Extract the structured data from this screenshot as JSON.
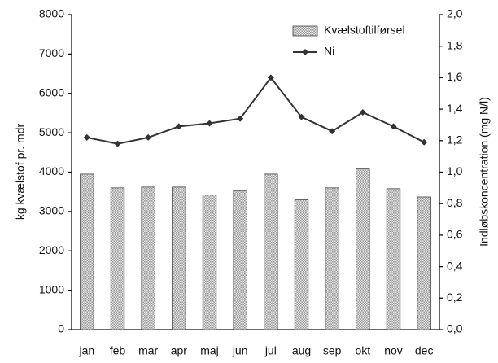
{
  "chart_data": {
    "type": "bar",
    "categories": [
      "jan",
      "feb",
      "mar",
      "apr",
      "maj",
      "jun",
      "jul",
      "aug",
      "sep",
      "okt",
      "nov",
      "dec"
    ],
    "y_label": "kg kvælstof pr. mdr",
    "y2_label": "Indløbskoncentration (mg N/l)",
    "series": [
      {
        "name": "Kvælstoftilførsel",
        "type": "bar",
        "color": "#9a9a9a",
        "values": [
          3950,
          3600,
          3620,
          3620,
          3420,
          3530,
          3950,
          3300,
          3600,
          4080,
          3580,
          3370
        ]
      },
      {
        "name": "Ni",
        "type": "line",
        "axis": "y2",
        "color": "#333333",
        "values": [
          1.22,
          1.18,
          1.22,
          1.29,
          1.31,
          1.34,
          1.6,
          1.35,
          1.26,
          1.38,
          1.29,
          1.19
        ]
      }
    ],
    "ylim": [
      0,
      8000
    ],
    "yticks": [
      0,
      1000,
      2000,
      3000,
      4000,
      5000,
      6000,
      7000,
      8000
    ],
    "y2lim": [
      0,
      2
    ],
    "y2ticks": [
      {
        "value": 0,
        "label": "0,0"
      },
      {
        "value": 0.2,
        "label": "0,2"
      },
      {
        "value": 0.4,
        "label": "0,4"
      },
      {
        "value": 0.6,
        "label": "0,6"
      },
      {
        "value": 0.8,
        "label": "0,8"
      },
      {
        "value": 1,
        "label": "1,0"
      },
      {
        "value": 1.2,
        "label": "1,2"
      },
      {
        "value": 1.4,
        "label": "1,4"
      },
      {
        "value": 1.6,
        "label": "1,6"
      },
      {
        "value": 1.8,
        "label": "1,8"
      },
      {
        "value": 2,
        "label": "2,0"
      }
    ],
    "grid": false,
    "legend": "upper right"
  }
}
